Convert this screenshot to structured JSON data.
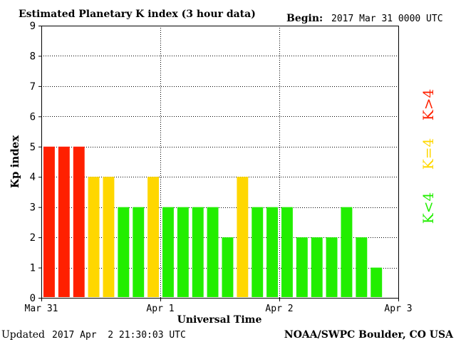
{
  "title": "Estimated Planetary K index (3 hour data)",
  "begin_label": "Begin:",
  "begin_value": "2017 Mar 31 0000 UTC",
  "footer": {
    "updated_label": "Updated",
    "updated_value": "2017 Apr  2 21:30:03 UTC",
    "source": "NOAA/SWPC Boulder, CO USA"
  },
  "legend": {
    "high": "K>4",
    "equal": "K=4",
    "low": "K<4"
  },
  "colors": {
    "high": "#ff2000",
    "equal": "#ffd700",
    "low": "#22ee00",
    "grid": "#000000",
    "axis": "#000000"
  },
  "chart_data": {
    "type": "bar",
    "title": "Estimated Planetary K index (3 hour data)",
    "xlabel": "Universal Time",
    "ylabel": "Kp index",
    "ylim": [
      0,
      9
    ],
    "yticks": [
      0,
      1,
      2,
      3,
      4,
      5,
      6,
      7,
      8,
      9
    ],
    "xticks": [
      "Mar 31",
      "Apr 1",
      "Apr 2",
      "Apr 3"
    ],
    "grid": true,
    "bin_hours": 3,
    "values": [
      5,
      5,
      5,
      4,
      4,
      3,
      3,
      4,
      3,
      3,
      3,
      3,
      2,
      4,
      3,
      3,
      3,
      2,
      2,
      2,
      3,
      2,
      1
    ]
  }
}
